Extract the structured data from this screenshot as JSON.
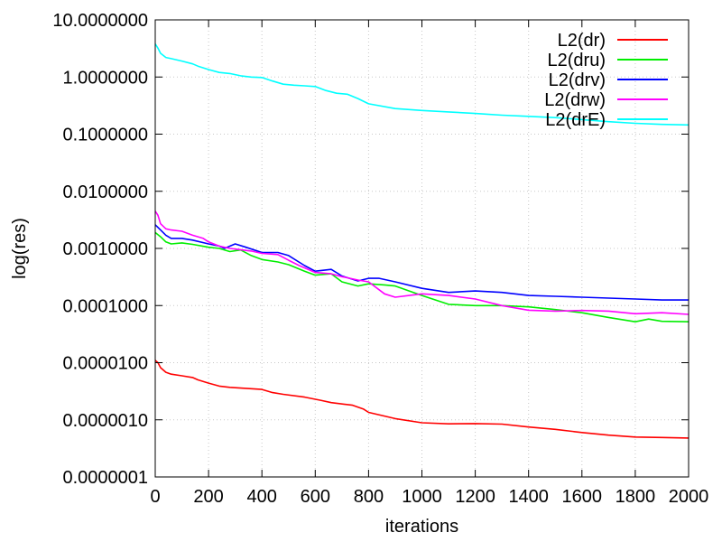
{
  "chart_data": {
    "type": "line",
    "xlabel": "iterations",
    "ylabel": "log(res)",
    "xlim": [
      0,
      2000
    ],
    "ylim": [
      1e-07,
      10
    ],
    "yscale": "log",
    "grid": true,
    "legend_position": "top-right",
    "x_ticks": [
      {
        "value": 0,
        "label": "0"
      },
      {
        "value": 200,
        "label": "200"
      },
      {
        "value": 400,
        "label": "400"
      },
      {
        "value": 600,
        "label": "600"
      },
      {
        "value": 800,
        "label": "800"
      },
      {
        "value": 1000,
        "label": "1000"
      },
      {
        "value": 1200,
        "label": "1200"
      },
      {
        "value": 1400,
        "label": "1400"
      },
      {
        "value": 1600,
        "label": "1600"
      },
      {
        "value": 1800,
        "label": "1800"
      },
      {
        "value": 2000,
        "label": "2000"
      }
    ],
    "y_ticks": [
      {
        "value": 10,
        "label": "10.0000000"
      },
      {
        "value": 1,
        "label": "1.0000000"
      },
      {
        "value": 0.1,
        "label": "0.1000000"
      },
      {
        "value": 0.01,
        "label": "0.0100000"
      },
      {
        "value": 0.001,
        "label": "0.0010000"
      },
      {
        "value": 0.0001,
        "label": "0.0001000"
      },
      {
        "value": 1e-05,
        "label": "0.0000100"
      },
      {
        "value": 1e-06,
        "label": "0.0000010"
      },
      {
        "value": 1e-07,
        "label": "0.0000001"
      }
    ],
    "series": [
      {
        "name": "L2(dr)",
        "color": "#ff0000",
        "x": [
          0,
          10,
          20,
          40,
          60,
          100,
          140,
          160,
          200,
          240,
          280,
          320,
          360,
          400,
          440,
          480,
          560,
          620,
          660,
          740,
          780,
          800,
          900,
          1000,
          1100,
          1200,
          1300,
          1400,
          1500,
          1600,
          1700,
          1800,
          1900,
          2000
        ],
        "y": [
          1.1e-05,
          1e-05,
          8.2e-06,
          6.8e-06,
          6.3e-06,
          5.9e-06,
          5.5e-06,
          5e-06,
          4.4e-06,
          3.9e-06,
          3.7e-06,
          3.6e-06,
          3.5e-06,
          3.4e-06,
          3e-06,
          2.8e-06,
          2.5e-06,
          2.2e-06,
          2e-06,
          1.8e-06,
          1.55e-06,
          1.35e-06,
          1.05e-06,
          8.9e-07,
          8.5e-07,
          8.6e-07,
          8.4e-07,
          7.5e-07,
          6.8e-07,
          6e-07,
          5.4e-07,
          5e-07,
          4.9e-07,
          4.8e-07
        ]
      },
      {
        "name": "L2(dru)",
        "color": "#00ee00",
        "x": [
          0,
          20,
          40,
          60,
          100,
          140,
          200,
          240,
          280,
          320,
          360,
          400,
          460,
          500,
          560,
          600,
          660,
          700,
          760,
          800,
          860,
          900,
          1000,
          1100,
          1200,
          1300,
          1400,
          1500,
          1600,
          1700,
          1800,
          1850,
          1900,
          2000
        ],
        "y": [
          0.0019,
          0.0016,
          0.0013,
          0.0012,
          0.00125,
          0.00118,
          0.00105,
          0.001,
          0.00088,
          0.00094,
          0.00075,
          0.00064,
          0.00058,
          0.00052,
          0.0004,
          0.00034,
          0.00036,
          0.00026,
          0.00022,
          0.00024,
          0.00023,
          0.00022,
          0.00015,
          0.000105,
          0.0001,
          0.0001,
          9.5e-05,
          8.5e-05,
          7.5e-05,
          6.2e-05,
          5.2e-05,
          5.8e-05,
          5.3e-05,
          5.2e-05
        ]
      },
      {
        "name": "L2(drv)",
        "color": "#0000ff",
        "x": [
          0,
          20,
          40,
          60,
          100,
          140,
          200,
          240,
          260,
          300,
          340,
          400,
          460,
          500,
          560,
          600,
          660,
          700,
          760,
          800,
          840,
          900,
          1000,
          1100,
          1200,
          1300,
          1400,
          1500,
          1600,
          1700,
          1800,
          1900,
          2000
        ],
        "y": [
          0.0026,
          0.0021,
          0.0017,
          0.0015,
          0.0015,
          0.0014,
          0.0012,
          0.0011,
          0.001,
          0.0012,
          0.00105,
          0.00085,
          0.00085,
          0.00075,
          0.0005,
          0.0004,
          0.00043,
          0.00033,
          0.00027,
          0.0003,
          0.0003,
          0.00026,
          0.0002,
          0.00017,
          0.00018,
          0.00017,
          0.00015,
          0.000145,
          0.00014,
          0.000135,
          0.00013,
          0.000125,
          0.000125
        ]
      },
      {
        "name": "L2(drw)",
        "color": "#ff00ff",
        "x": [
          0,
          10,
          20,
          40,
          60,
          100,
          140,
          180,
          200,
          240,
          280,
          320,
          360,
          400,
          460,
          500,
          540,
          600,
          660,
          700,
          760,
          800,
          860,
          900,
          1000,
          1100,
          1200,
          1300,
          1400,
          1500,
          1600,
          1700,
          1800,
          1900,
          2000
        ],
        "y": [
          0.0045,
          0.0038,
          0.0027,
          0.0022,
          0.0021,
          0.002,
          0.0017,
          0.0015,
          0.0013,
          0.0011,
          0.001,
          0.00095,
          0.0009,
          0.00082,
          0.00078,
          0.00062,
          0.0005,
          0.00038,
          0.00036,
          0.00032,
          0.00028,
          0.00026,
          0.00016,
          0.00014,
          0.00016,
          0.00015,
          0.00013,
          0.0001,
          8.3e-05,
          8e-05,
          8.2e-05,
          8e-05,
          7.2e-05,
          7.5e-05,
          7e-05
        ]
      },
      {
        "name": "L2(drE)",
        "color": "#00ffff",
        "x": [
          0,
          10,
          20,
          40,
          60,
          100,
          140,
          160,
          200,
          240,
          280,
          320,
          360,
          400,
          440,
          480,
          520,
          560,
          600,
          640,
          680,
          720,
          760,
          800,
          900,
          1000,
          1100,
          1200,
          1300,
          1400,
          1500,
          1600,
          1700,
          1800,
          1900,
          2000
        ],
        "y": [
          3.8,
          3.2,
          2.6,
          2.2,
          2.1,
          1.9,
          1.7,
          1.55,
          1.35,
          1.2,
          1.15,
          1.05,
          1.0,
          0.98,
          0.85,
          0.75,
          0.72,
          0.7,
          0.68,
          0.58,
          0.52,
          0.5,
          0.42,
          0.34,
          0.28,
          0.26,
          0.245,
          0.23,
          0.215,
          0.205,
          0.195,
          0.18,
          0.165,
          0.155,
          0.148,
          0.145
        ]
      }
    ]
  }
}
